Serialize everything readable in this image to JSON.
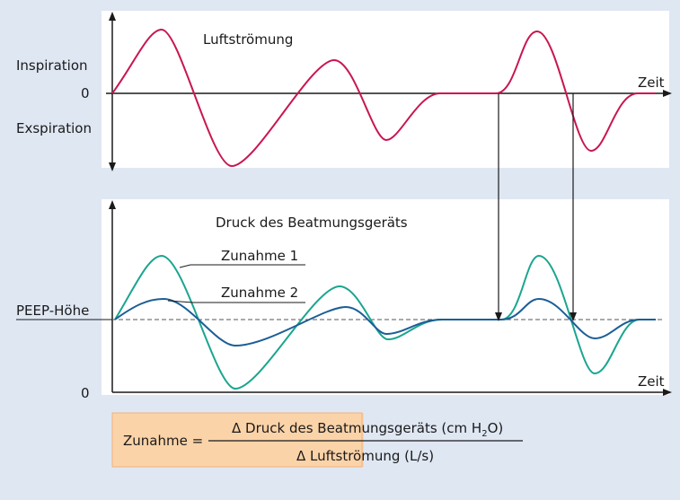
{
  "top_panel": {
    "title": "Luftströmung",
    "y_upper_label": "Inspiration",
    "y_zero_label": "0",
    "y_lower_label": "Exspiration",
    "x_label": "Zeit"
  },
  "bottom_panel": {
    "title": "Druck des Beatmungsgeräts",
    "curve_1_label": "Zunahme 1",
    "curve_2_label": "Zunahme 2",
    "peep_label": "PEEP-Höhe",
    "y_zero_label": "0",
    "x_label": "Zeit"
  },
  "formula": {
    "lhs": "Zunahme =",
    "numerator_main": "Δ Druck des Beatmungsgeräts (cm H",
    "numerator_subscript": "2",
    "numerator_end": "O)",
    "denominator": "Δ Luftströmung (L/s)"
  }
}
